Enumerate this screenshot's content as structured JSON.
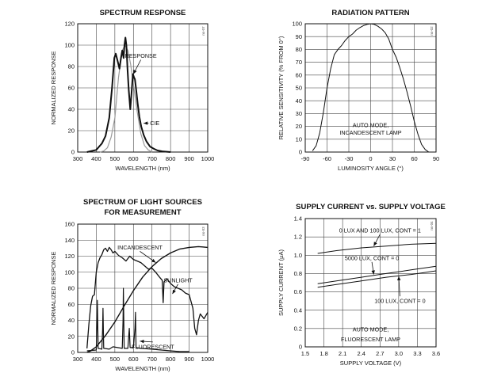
{
  "chart_data": [
    {
      "id": "spectrum-response",
      "type": "line",
      "title": "SPECTRUM RESPONSE",
      "xlabel": "WAVELENGTH (nm)",
      "ylabel": "NORMALIZED RESPONSE",
      "xlim": [
        300,
        1000
      ],
      "ylim": [
        0,
        120
      ],
      "xticks": [
        300,
        400,
        500,
        600,
        700,
        800,
        900,
        1000
      ],
      "yticks": [
        0,
        20,
        40,
        60,
        80,
        100,
        120
      ],
      "grid": true,
      "code": "ns-07",
      "series": [
        {
          "name": "RESPONSE",
          "color": "#111111",
          "width": 2.0,
          "x": [
            350,
            400,
            430,
            450,
            470,
            485,
            497,
            505,
            515,
            525,
            533,
            540,
            547,
            552,
            557,
            562,
            568,
            575,
            583,
            590,
            597,
            603,
            608,
            615,
            623,
            632,
            642,
            655,
            670,
            690,
            710,
            730,
            760,
            800
          ],
          "y": [
            0,
            2,
            8,
            15,
            32,
            60,
            88,
            92,
            85,
            78,
            88,
            95,
            88,
            100,
            107,
            100,
            78,
            58,
            40,
            55,
            73,
            70,
            68,
            58,
            45,
            33,
            24,
            16,
            10,
            5,
            3,
            1.5,
            0.5,
            0
          ]
        },
        {
          "name": "CIE",
          "color": "#9a9a9a",
          "width": 1.2,
          "x": [
            420,
            440,
            460,
            480,
            500,
            520,
            540,
            555,
            570,
            585,
            600,
            620,
            640,
            660,
            680,
            700
          ],
          "y": [
            0,
            1,
            4,
            14,
            32,
            70,
            95,
            100,
            95,
            82,
            63,
            38,
            17,
            6,
            2,
            0
          ]
        }
      ],
      "annotations": [
        {
          "text": "RESPONSE",
          "x": 640,
          "y": 90,
          "arrow_to": [
            600,
            73
          ]
        },
        {
          "text": "CIE",
          "x": 715,
          "y": 27,
          "arrow_to": [
            655,
            27
          ]
        }
      ]
    },
    {
      "id": "radiation-pattern",
      "type": "line",
      "title": "RADIATION PATTERN",
      "xlabel": "LUMINOSITY ANGLE (°)",
      "ylabel": "RELATIVE SENSITIVITY (% FROM 0°)",
      "xlim": [
        -90,
        90
      ],
      "ylim": [
        0,
        100
      ],
      "xticks": [
        -90,
        -60,
        -30,
        0,
        30,
        60,
        90
      ],
      "yticks": [
        0,
        10,
        20,
        30,
        40,
        50,
        60,
        70,
        80,
        90,
        100
      ],
      "grid": true,
      "code": "ns-02",
      "series": [
        {
          "name": "",
          "color": "#111111",
          "width": 1.0,
          "x": [
            -80,
            -75,
            -70,
            -65,
            -60,
            -55,
            -50,
            -45,
            -40,
            -35,
            -30,
            -25,
            -20,
            -15,
            -10,
            -5,
            0,
            5,
            10,
            15,
            20,
            25,
            30,
            35,
            40,
            45,
            50,
            55,
            60,
            65,
            70,
            75,
            80
          ],
          "y": [
            1,
            5,
            15,
            31,
            50,
            65,
            76,
            80,
            83,
            87,
            90,
            92,
            95,
            97,
            98.5,
            99.5,
            100,
            99.5,
            98,
            96,
            93,
            88,
            80,
            74,
            66,
            57,
            47,
            36,
            24,
            14,
            6,
            2,
            0
          ]
        }
      ],
      "annotations": [
        {
          "text": "AUTO MODE,",
          "x": 0,
          "y": 21
        },
        {
          "text": "INCANDESCENT LAMP",
          "x": 0,
          "y": 15
        }
      ]
    },
    {
      "id": "spectrum-light-sources",
      "type": "line",
      "title": "SPECTRUM OF LIGHT SOURCES",
      "subtitle": "FOR MEASUREMENT",
      "xlabel": "WAVELENGTH (nm)",
      "ylabel": "NORMALIZED RESPONSE",
      "xlim": [
        300,
        1000
      ],
      "ylim": [
        0,
        160
      ],
      "xticks": [
        300,
        400,
        500,
        600,
        700,
        800,
        900,
        1000
      ],
      "yticks": [
        0,
        20,
        40,
        60,
        80,
        100,
        120,
        140,
        160
      ],
      "grid": true,
      "code": "ns-03",
      "series": [
        {
          "name": "INCANDESCENT",
          "color": "#111111",
          "width": 1.4,
          "x": [
            350,
            370,
            400,
            450,
            500,
            550,
            600,
            650,
            700,
            750,
            800,
            850,
            900,
            950,
            1000
          ],
          "y": [
            0,
            2,
            7,
            21,
            38,
            58,
            77,
            94,
            107,
            117,
            124,
            129,
            131,
            132,
            131
          ]
        },
        {
          "name": "SUNLIGHT",
          "color": "#111111",
          "width": 1.3,
          "x": [
            350,
            360,
            370,
            380,
            390,
            400,
            410,
            420,
            430,
            440,
            450,
            460,
            470,
            480,
            490,
            500,
            520,
            540,
            560,
            580,
            600,
            620,
            640,
            660,
            680,
            700,
            720,
            740,
            755,
            760,
            765,
            780,
            800,
            820,
            840,
            860,
            880,
            900,
            920,
            930,
            940,
            950,
            960,
            980,
            1000
          ],
          "y": [
            5,
            35,
            58,
            70,
            72,
            100,
            112,
            118,
            122,
            128,
            130,
            126,
            131,
            128,
            124,
            126,
            121,
            118,
            114,
            120,
            116,
            114,
            112,
            108,
            104,
            105,
            100,
            94,
            90,
            62,
            88,
            92,
            86,
            82,
            80,
            78,
            74,
            72,
            55,
            30,
            22,
            40,
            48,
            42,
            50
          ]
        },
        {
          "name": "FLUORESCENT",
          "color": "#111111",
          "width": 1.2,
          "x": [
            350,
            400,
            404,
            406,
            410,
            430,
            434,
            436,
            440,
            470,
            490,
            540,
            544,
            546,
            550,
            570,
            576,
            578,
            582,
            600,
            608,
            611,
            614,
            640,
            700,
            750,
            800,
            850,
            900
          ],
          "y": [
            2,
            3,
            40,
            65,
            5,
            4,
            28,
            55,
            5,
            4,
            7,
            5,
            40,
            80,
            5,
            5,
            25,
            30,
            6,
            6,
            30,
            50,
            6,
            5,
            4,
            3,
            2,
            1,
            1
          ]
        }
      ],
      "annotations": [
        {
          "text": "INCANDESCENT",
          "x": 635,
          "y": 131,
          "arrow_to": [
            720,
            112
          ]
        },
        {
          "text": "SUNLIGHT",
          "x": 840,
          "y": 90,
          "arrow_to": [
            810,
            73
          ]
        },
        {
          "text": "FLUORESCENT",
          "x": 705,
          "y": 7,
          "arrow_to": [
            635,
            14
          ]
        }
      ]
    },
    {
      "id": "supply-current",
      "type": "line",
      "title": "SUPPLY CURRENT vs. SUPPLY VOLTAGE",
      "xlabel": "SUPPLY VOLTAGE (V)",
      "ylabel": "SUPPLY CURRENT (μA)",
      "xlim": [
        1.5,
        3.6
      ],
      "ylim": [
        0,
        1.4
      ],
      "xticks": [
        "1.5",
        "1.8",
        "2.1",
        "2.4",
        "2.7",
        "3.0",
        "3.3",
        "3.6"
      ],
      "yticks": [
        "0",
        "0.2",
        "0.4",
        "0.6",
        "0.8",
        "1.0",
        "1.2",
        "1.4"
      ],
      "grid": true,
      "code": "ns-04",
      "series": [
        {
          "name": "0 LUX AND 100 LUX, CONT = 1",
          "color": "#111111",
          "width": 1.0,
          "x": [
            1.7,
            2.0,
            2.4,
            2.8,
            3.2,
            3.6
          ],
          "y": [
            1.02,
            1.05,
            1.08,
            1.1,
            1.12,
            1.13
          ]
        },
        {
          "name": "5000 LUX, CONT = 0",
          "color": "#111111",
          "width": 1.0,
          "x": [
            1.7,
            2.0,
            2.4,
            2.8,
            3.2,
            3.6
          ],
          "y": [
            0.69,
            0.72,
            0.76,
            0.8,
            0.84,
            0.88
          ]
        },
        {
          "name": "100 LUX, CONT = 0",
          "color": "#111111",
          "width": 1.0,
          "x": [
            1.7,
            2.0,
            2.4,
            2.8,
            3.2,
            3.6
          ],
          "y": [
            0.65,
            0.68,
            0.72,
            0.76,
            0.79,
            0.83
          ]
        }
      ],
      "annotations": [
        {
          "text": "0 LUX AND 100 LUX, CONT = 1",
          "x": 2.7,
          "y": 1.27,
          "arrow_to": [
            2.6,
            1.1
          ]
        },
        {
          "text": "5000 LUX, CONT = 0",
          "x": 2.57,
          "y": 0.97,
          "arrow_to": [
            2.6,
            0.79
          ]
        },
        {
          "text": "100 LUX, CONT = 0",
          "x": 3.02,
          "y": 0.5,
          "arrow_to": [
            3.0,
            0.77
          ]
        },
        {
          "text": "AUTO MODE,",
          "x": 2.55,
          "y": 0.19
        },
        {
          "text": "FLUORESCENT LAMP",
          "x": 2.55,
          "y": 0.08
        }
      ]
    }
  ]
}
